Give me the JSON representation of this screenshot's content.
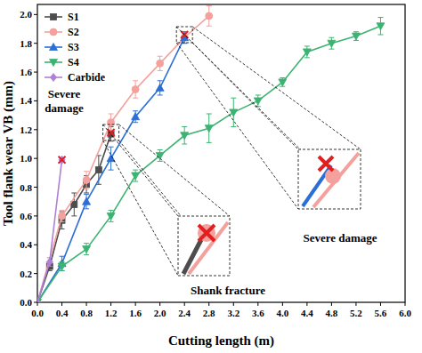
{
  "chart_data": {
    "type": "line",
    "x_label": "Cutting length (m)",
    "y_label": "Tool flank wear VB (mm)",
    "xlim": [
      0,
      6.0
    ],
    "ylim": [
      0,
      2.07
    ],
    "xticks": [
      {
        "value": 0,
        "label": "0.0"
      },
      0.4,
      0.8,
      1.2,
      1.6,
      {
        "value": 2,
        "label": "2.0"
      },
      2.4,
      2.8,
      3.2,
      3.6,
      {
        "value": 4,
        "label": "4.0"
      },
      4.4,
      4.8,
      5.2,
      5.6,
      {
        "value": 6,
        "label": "6.0"
      }
    ],
    "yticks": [
      {
        "value": 0,
        "label": "0.0"
      },
      0.2,
      0.4,
      0.6,
      0.8,
      {
        "value": 1,
        "label": "1.0"
      },
      1.2,
      1.4,
      1.6,
      1.8,
      {
        "value": 2,
        "label": "2.0"
      }
    ],
    "legend": "top-left",
    "grid": false,
    "series": [
      {
        "name": "S1",
        "color": "#4d4d4d",
        "marker": "square",
        "x": [
          0,
          0.2,
          0.4,
          0.6,
          0.8,
          1.0,
          1.2
        ],
        "values": [
          0,
          0.25,
          0.57,
          0.68,
          0.82,
          0.92,
          1.17
        ],
        "errors": [
          0,
          0.03,
          0.06,
          0.08,
          0.06,
          0.1,
          0.05
        ]
      },
      {
        "name": "S2",
        "color": "#f4a09c",
        "marker": "circle",
        "x": [
          0,
          0.4,
          0.8,
          1.2,
          1.6,
          2.0,
          2.4,
          2.8
        ],
        "values": [
          0,
          0.6,
          0.85,
          1.25,
          1.48,
          1.66,
          1.84,
          1.99
        ],
        "errors": [
          0,
          0.04,
          0.06,
          0.06,
          0.06,
          0.05,
          0.04,
          0.07
        ]
      },
      {
        "name": "S3",
        "color": "#2b6fd6",
        "marker": "triangle",
        "x": [
          0,
          0.4,
          0.8,
          1.2,
          1.6,
          2.0,
          2.4
        ],
        "values": [
          0,
          0.27,
          0.7,
          1.0,
          1.29,
          1.49,
          1.84
        ],
        "errors": [
          0,
          0.05,
          0.05,
          0.08,
          0.04,
          0.05,
          0.04
        ]
      },
      {
        "name": "S4",
        "color": "#3cb371",
        "marker": "triangle-down",
        "x": [
          0,
          0.4,
          0.8,
          1.2,
          1.6,
          2.0,
          2.4,
          2.8,
          3.2,
          3.6,
          4.0,
          4.4,
          4.8,
          5.2,
          5.6
        ],
        "values": [
          0,
          0.25,
          0.37,
          0.6,
          0.88,
          1.02,
          1.16,
          1.21,
          1.32,
          1.4,
          1.53,
          1.74,
          1.8,
          1.85,
          1.92
        ],
        "errors": [
          0,
          0.03,
          0.04,
          0.04,
          0.04,
          0.04,
          0.06,
          0.1,
          0.1,
          0.04,
          0.03,
          0.04,
          0.04,
          0.03,
          0.06
        ]
      },
      {
        "name": "Carbide",
        "color": "#b07fd6",
        "marker": "diamond",
        "x": [
          0,
          0.2,
          0.4
        ],
        "values": [
          0,
          0.28,
          0.99
        ],
        "errors": [
          0,
          0.03,
          0
        ]
      }
    ],
    "failure_points": {
      "color": "#e02020",
      "x": [
        0.4,
        1.2,
        2.4
      ],
      "y": [
        0.99,
        1.18,
        1.86
      ]
    },
    "annotations": [
      "Severe damage",
      "Shank fracture",
      "Severe damage"
    ]
  }
}
